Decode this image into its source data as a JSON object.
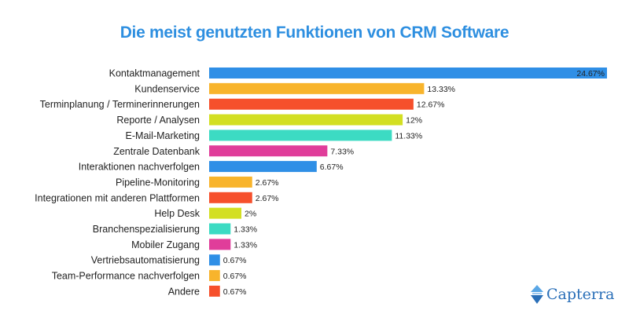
{
  "chart_data": {
    "type": "bar",
    "orientation": "horizontal",
    "title": "Die meist genutzten Funktionen von CRM Software",
    "categories": [
      "Kontaktmanagement",
      "Kundenservice",
      "Terminplanung / Terminerinnerungen",
      "Reporte / Analysen",
      "E-Mail-Marketing",
      "Zentrale Datenbank",
      "Interaktionen nachverfolgen",
      "Pipeline-Monitoring",
      "Integrationen mit anderen Plattformen",
      "Help Desk",
      "Branchenspezialisierung",
      "Mobiler Zugang",
      "Vertriebsautomatisierung",
      "Team-Performance nachverfolgen",
      "Andere"
    ],
    "values": [
      24.67,
      13.33,
      12.67,
      12,
      11.33,
      7.33,
      6.67,
      2.67,
      2.67,
      2,
      1.33,
      1.33,
      0.67,
      0.67,
      0.67
    ],
    "value_labels": [
      "24.67%",
      "13.33%",
      "12.67%",
      "12%",
      "11.33%",
      "7.33%",
      "6.67%",
      "2.67%",
      "2.67%",
      "2%",
      "1.33%",
      "1.33%",
      "0.67%",
      "0.67%",
      "0.67%"
    ],
    "colors": [
      "#2f8fe6",
      "#f8b42c",
      "#f6502c",
      "#d3df22",
      "#3cdbc3",
      "#e03d9a"
    ],
    "xlim": [
      0,
      24.67
    ],
    "grid": false,
    "legend": "none"
  },
  "logo": {
    "text": "Capterra",
    "color": "#2a6fb8"
  }
}
